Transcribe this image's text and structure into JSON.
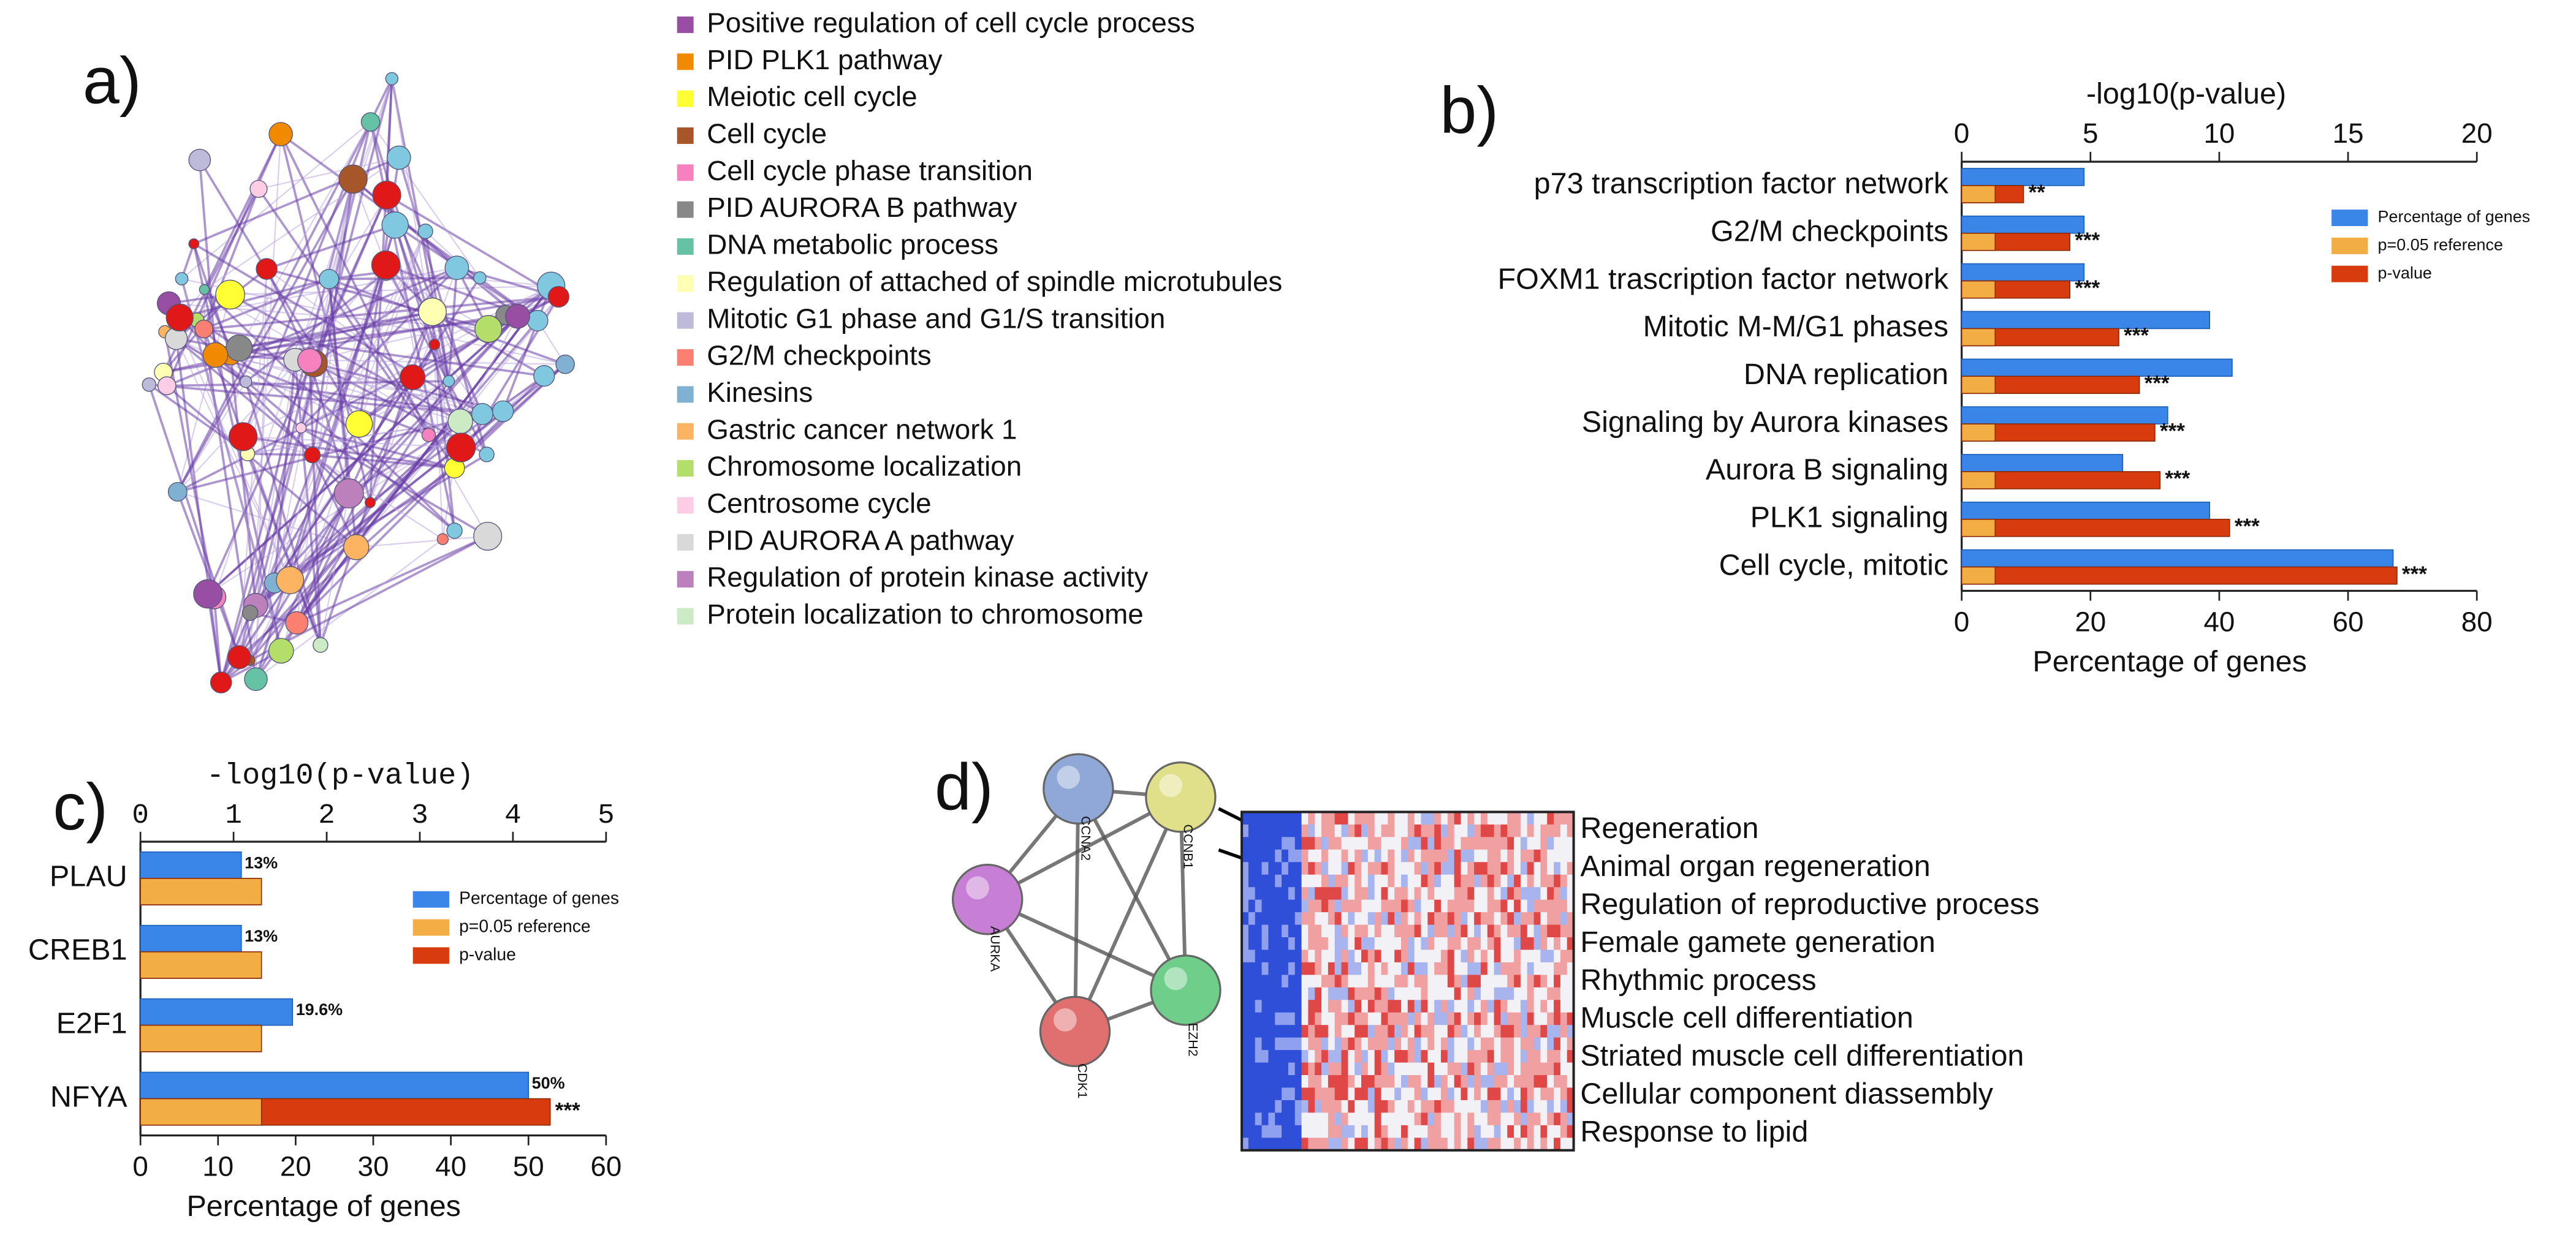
{
  "panel_labels": [
    "a)",
    "b)",
    "c)",
    "d)"
  ],
  "network_legend": [
    {
      "label": "Positive regulation of cell cycle process",
      "color": "#984ea3"
    },
    {
      "label": "PID PLK1 pathway",
      "color": "#f28a00"
    },
    {
      "label": "Meiotic cell cycle",
      "color": "#ffff33"
    },
    {
      "label": "Cell cycle",
      "color": "#a65628"
    },
    {
      "label": "Cell cycle phase transition",
      "color": "#f781bf"
    },
    {
      "label": "PID AURORA B pathway",
      "color": "#888888"
    },
    {
      "label": "DNA metabolic process",
      "color": "#66c2a5"
    },
    {
      "label": "Regulation of attached of spindle microtubules",
      "color": "#ffffb3"
    },
    {
      "label": "Mitotic G1 phase and G1/S transition",
      "color": "#bebada"
    },
    {
      "label": "G2/M checkpoints",
      "color": "#fb8072"
    },
    {
      "label": "Kinesins",
      "color": "#80b1d3"
    },
    {
      "label": "Gastric cancer network 1",
      "color": "#fdb462"
    },
    {
      "label": "Chromosome localization",
      "color": "#b3de69"
    },
    {
      "label": "Centrosome cycle",
      "color": "#fccde5"
    },
    {
      "label": "PID AURORA A pathway",
      "color": "#d9d9d9"
    },
    {
      "label": "Regulation of protein kinase activity",
      "color": "#bc80bd"
    },
    {
      "label": "Protein localization to chromosome",
      "color": "#ccebc5"
    }
  ],
  "chart_data": [
    {
      "type": "hbar",
      "categories": [
        "p73 transcription factor network",
        "G2/M checkpoints",
        "FOXM1 trascription factor network",
        "Mitotic M-M/G1 phases",
        "DNA replication",
        "Signaling by Aurora kinases",
        "Aurora B signaling",
        "PLK1 signaling",
        "Cell cycle, mitotic"
      ],
      "xlabel": "Percentage of genes",
      "xlim": [
        0,
        80
      ],
      "xticks": [
        0,
        20,
        40,
        60,
        80
      ],
      "x2label": "-log10(p-value)",
      "x2lim": [
        0,
        20
      ],
      "x2ticks": [
        0,
        5,
        10,
        15,
        20
      ],
      "series": [
        {
          "name": "Percentage of genes",
          "color": "#3a86e8",
          "values": [
            19,
            19,
            19,
            38.5,
            42,
            32,
            25,
            38.5,
            67
          ]
        },
        {
          "name": "p=0.05 reference",
          "color": "#f3ad45",
          "axis": "x2",
          "values": [
            1.3,
            1.3,
            1.3,
            1.3,
            1.3,
            1.3,
            1.3,
            1.3,
            1.3
          ]
        },
        {
          "name": "p-value",
          "color": "#d83c0e",
          "axis": "x2",
          "values": [
            2.4,
            4.2,
            4.2,
            6.1,
            6.9,
            7.5,
            7.7,
            10.4,
            16.9
          ]
        }
      ],
      "significance": [
        "**",
        "***",
        "***",
        "***",
        "***",
        "***",
        "***",
        "***",
        "***"
      ],
      "legend": "upper right"
    },
    {
      "type": "hbar",
      "categories": [
        "PLAU",
        "CREB1",
        "E2F1",
        "NFYA"
      ],
      "xlabel": "Percentage of genes",
      "xlim": [
        0,
        60
      ],
      "xticks": [
        0,
        10,
        20,
        30,
        40,
        50,
        60
      ],
      "x2label": "-log10(p-value)",
      "x2lim": [
        0,
        5
      ],
      "x2ticks": [
        0,
        1,
        2,
        3,
        4,
        5
      ],
      "series": [
        {
          "name": "Percentage of genes",
          "color": "#3a86e8",
          "values": [
            13,
            13,
            19.6,
            50
          ],
          "value_labels": [
            "13%",
            "13%",
            "19.6%",
            "50%"
          ]
        },
        {
          "name": "p=0.05 reference",
          "color": "#f3ad45",
          "axis": "x2",
          "values": [
            1.3,
            1.3,
            1.3,
            1.3
          ]
        },
        {
          "name": "p-value",
          "color": "#d83c0e",
          "axis": "x2",
          "values": [
            1.28,
            1.28,
            1.28,
            4.4
          ]
        }
      ],
      "significance": [
        null,
        null,
        null,
        "***"
      ],
      "legend": "upper right"
    }
  ],
  "string_network": {
    "nodes": [
      {
        "label": "CCNA2",
        "color": "#8fa8d8"
      },
      {
        "label": "CCNB1",
        "color": "#e0e08a"
      },
      {
        "label": "AURKA",
        "color": "#c77fd6"
      },
      {
        "label": "CDK1",
        "color": "#e07070"
      },
      {
        "label": "EZH2",
        "color": "#6fcf8a"
      }
    ]
  },
  "heatmap_terms": [
    "Regeneration",
    "Animal organ regeneration",
    "Regulation of reproductive process",
    "Female gamete generation",
    "Rhythmic process",
    "Muscle cell differentiation",
    "Striated muscle cell differentiation",
    "Cellular component diassembly",
    "Response to lipid"
  ]
}
